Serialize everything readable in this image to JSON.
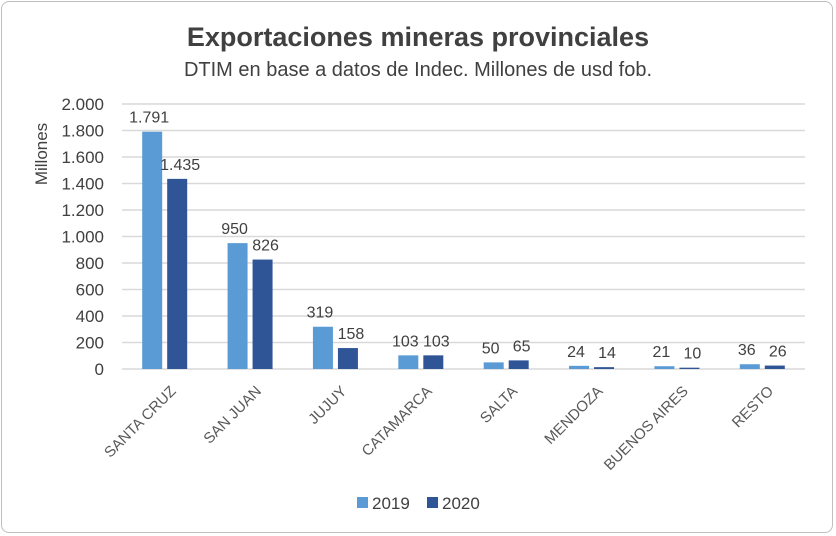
{
  "chart_data": {
    "type": "bar",
    "title": "Exportaciones mineras provinciales",
    "subtitle": "DTIM en base a datos de Indec. Millones de usd fob.",
    "xlabel": "",
    "ylabel": "Millones",
    "ylim": [
      0,
      2000
    ],
    "yticks": [
      0,
      200,
      400,
      600,
      800,
      1000,
      1200,
      1400,
      1600,
      1800,
      2000
    ],
    "ytick_labels": [
      "0",
      "200",
      "400",
      "600",
      "800",
      "1.000",
      "1.200",
      "1.400",
      "1.600",
      "1.800",
      "2.000"
    ],
    "grid": true,
    "legend": "bottom",
    "categories": [
      "SANTA CRUZ",
      "SAN JUAN",
      "JUJUY",
      "CATAMARCA",
      "SALTA",
      "MENDOZA",
      "BUENOS AIRES",
      "RESTO"
    ],
    "series": [
      {
        "name": "2019",
        "color": "#5B9BD5",
        "values": [
          1791,
          950,
          319,
          103,
          50,
          24,
          21,
          36
        ],
        "labels": [
          "1.791",
          "950",
          "319",
          "103",
          "50",
          "24",
          "21",
          "36"
        ]
      },
      {
        "name": "2020",
        "color": "#2F5597",
        "values": [
          1435,
          826,
          158,
          103,
          65,
          14,
          10,
          26
        ],
        "labels": [
          "1.435",
          "826",
          "158",
          "103",
          "65",
          "14",
          "10",
          "26"
        ]
      }
    ]
  }
}
